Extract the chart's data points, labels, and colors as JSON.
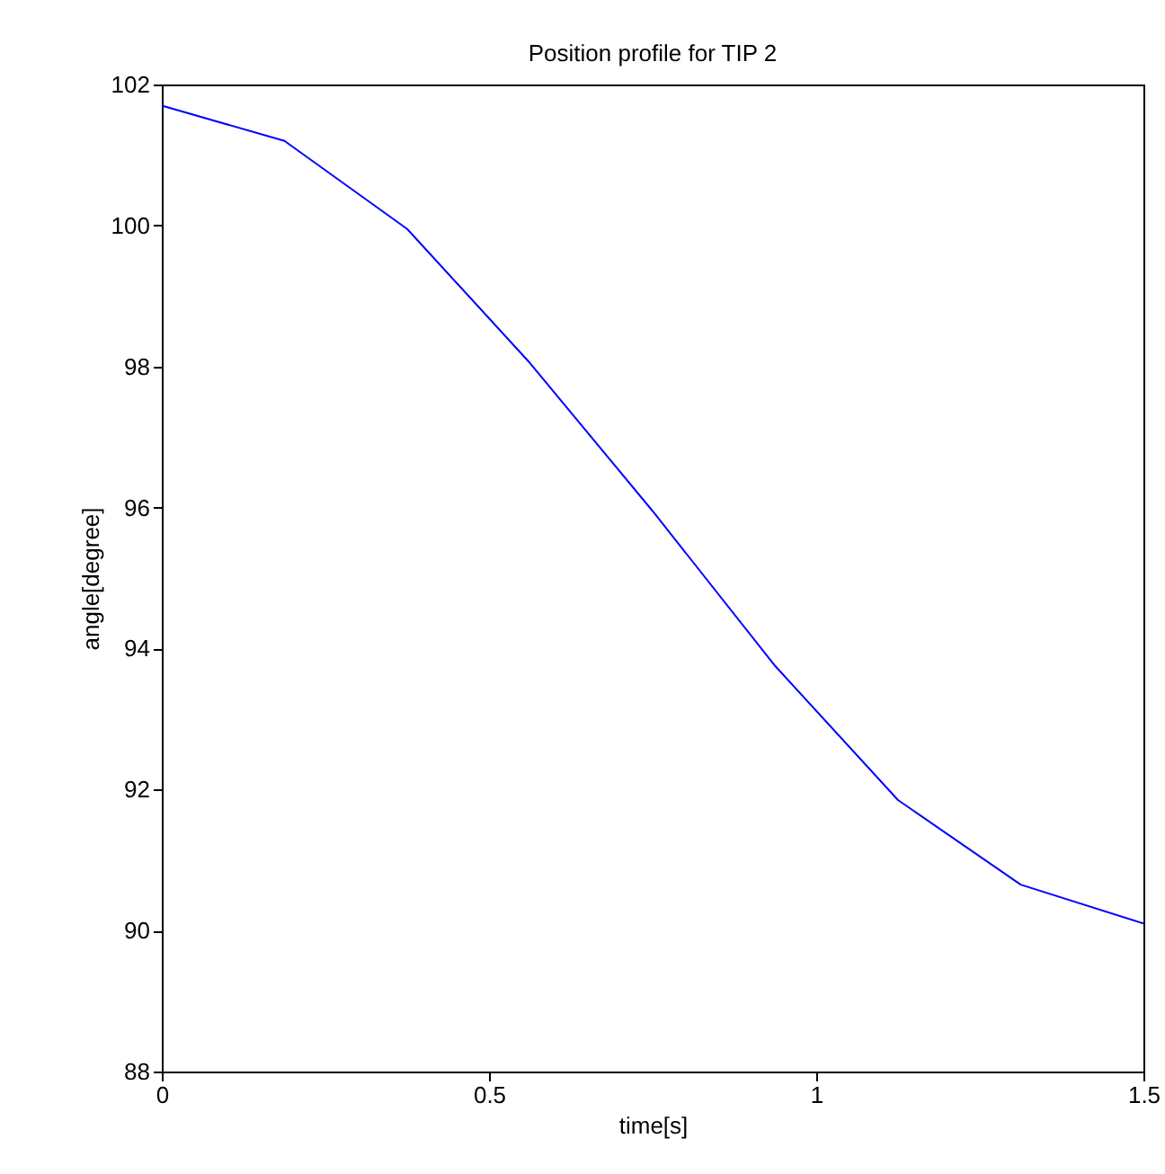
{
  "chart_data": {
    "type": "line",
    "title": "Position profile for TIP 2",
    "xlabel": "time[s]",
    "ylabel": "angle[degree]",
    "x": [
      0,
      0.1875,
      0.375,
      0.5625,
      0.75,
      0.9375,
      1.125,
      1.3125,
      1.5
    ],
    "series": [
      {
        "color": "#0000ff",
        "values": [
          101.7,
          101.2,
          99.95,
          98.05,
          95.95,
          93.75,
          91.85,
          90.65,
          90.1
        ]
      }
    ],
    "xlim": [
      0,
      1.5
    ],
    "xticks": [
      {
        "value": 0,
        "label": "0"
      },
      0.5,
      {
        "value": 1,
        "label": "1"
      },
      1.5
    ],
    "ylim": [
      88,
      102
    ],
    "yticks": [
      88,
      90,
      92,
      94,
      96,
      98,
      100,
      102
    ],
    "grid": false,
    "marker": "none",
    "line_style": "solid"
  }
}
